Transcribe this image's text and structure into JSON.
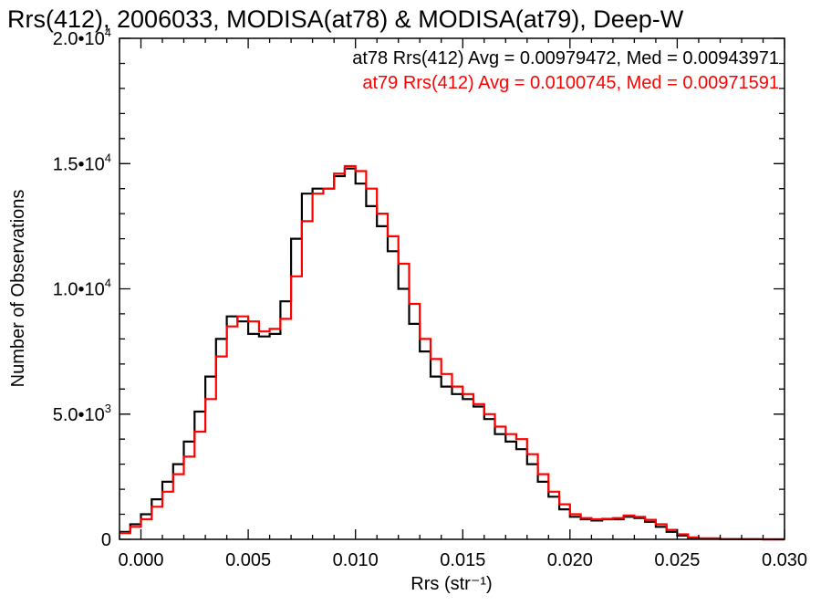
{
  "chart_data": {
    "type": "line",
    "title": "Rrs(412), 2006033, MODISA(at78) & MODISA(at79), Deep-W",
    "xlabel": "Rrs (str⁻¹)",
    "ylabel": "Number of Observations",
    "xlim": [
      -0.001,
      0.03
    ],
    "ylim": [
      0,
      20000
    ],
    "grid": false,
    "step": true,
    "x_ticks": [
      0.0,
      0.005,
      0.01,
      0.015,
      0.02,
      0.025,
      0.03
    ],
    "x_tick_labels": [
      "0.000",
      "0.005",
      "0.010",
      "0.015",
      "0.020",
      "0.025",
      "0.030"
    ],
    "x_minor_step": 0.001,
    "y_ticks": [
      {
        "value": 0,
        "mant": "0",
        "exp": ""
      },
      {
        "value": 5000,
        "mant": "5.0•10",
        "exp": "3"
      },
      {
        "value": 10000,
        "mant": "1.0•10",
        "exp": "4"
      },
      {
        "value": 15000,
        "mant": "1.5•10",
        "exp": "4"
      },
      {
        "value": 20000,
        "mant": "2.0•10",
        "exp": "4"
      }
    ],
    "y_minor_step": 1000,
    "annotations": [
      {
        "text": "at78 Rrs(412) Avg = 0.00979472, Med = 0.00943971",
        "color": "#000000"
      },
      {
        "text": "at79 Rrs(412) Avg = 0.0100745, Med = 0.00971591",
        "color": "#ff0000"
      }
    ],
    "series": [
      {
        "name": "at78",
        "color": "#000000",
        "x": [
          -0.001,
          -0.0005,
          0.0,
          0.0005,
          0.001,
          0.0015,
          0.002,
          0.0025,
          0.003,
          0.0035,
          0.004,
          0.0045,
          0.005,
          0.0055,
          0.006,
          0.0065,
          0.007,
          0.0075,
          0.008,
          0.0085,
          0.009,
          0.0095,
          0.01,
          0.0105,
          0.011,
          0.0115,
          0.012,
          0.0125,
          0.013,
          0.0135,
          0.014,
          0.0145,
          0.015,
          0.0155,
          0.016,
          0.0165,
          0.017,
          0.0175,
          0.018,
          0.0185,
          0.019,
          0.0195,
          0.02,
          0.0205,
          0.021,
          0.0215,
          0.022,
          0.0225,
          0.023,
          0.0235,
          0.024,
          0.0245,
          0.025,
          0.0255,
          0.026,
          0.027,
          0.028,
          0.029,
          0.03
        ],
        "y": [
          300,
          600,
          1000,
          1600,
          2300,
          3000,
          3900,
          5100,
          6500,
          8000,
          8900,
          8700,
          8200,
          8100,
          8200,
          9500,
          12000,
          13800,
          14000,
          14000,
          14500,
          14800,
          14200,
          13300,
          12500,
          11500,
          10000,
          8600,
          7500,
          6500,
          6100,
          5800,
          5600,
          5300,
          4800,
          4200,
          3900,
          3600,
          3000,
          2300,
          1700,
          1200,
          900,
          800,
          750,
          800,
          800,
          900,
          850,
          700,
          500,
          300,
          150,
          60,
          30,
          10,
          5,
          0,
          0
        ]
      },
      {
        "name": "at79",
        "color": "#ff0000",
        "x": [
          -0.001,
          -0.0005,
          0.0,
          0.0005,
          0.001,
          0.0015,
          0.002,
          0.0025,
          0.003,
          0.0035,
          0.004,
          0.0045,
          0.005,
          0.0055,
          0.006,
          0.0065,
          0.007,
          0.0075,
          0.008,
          0.0085,
          0.009,
          0.0095,
          0.01,
          0.0105,
          0.011,
          0.0115,
          0.012,
          0.0125,
          0.013,
          0.0135,
          0.014,
          0.0145,
          0.015,
          0.0155,
          0.016,
          0.0165,
          0.017,
          0.0175,
          0.018,
          0.0185,
          0.019,
          0.0195,
          0.02,
          0.0205,
          0.021,
          0.0215,
          0.022,
          0.0225,
          0.023,
          0.0235,
          0.024,
          0.0245,
          0.025,
          0.0255,
          0.026,
          0.027,
          0.028,
          0.029,
          0.03
        ],
        "y": [
          250,
          500,
          800,
          1300,
          1900,
          2600,
          3300,
          4300,
          5600,
          7300,
          8500,
          8900,
          8700,
          8300,
          8400,
          8800,
          10500,
          12700,
          13800,
          14000,
          14600,
          14900,
          14700,
          14000,
          13000,
          12100,
          11000,
          9400,
          8000,
          7200,
          6600,
          6100,
          5800,
          5400,
          5000,
          4500,
          4200,
          4000,
          3400,
          2600,
          1900,
          1400,
          1000,
          850,
          800,
          820,
          850,
          950,
          900,
          780,
          600,
          380,
          200,
          80,
          40,
          15,
          5,
          0,
          0
        ]
      }
    ]
  }
}
